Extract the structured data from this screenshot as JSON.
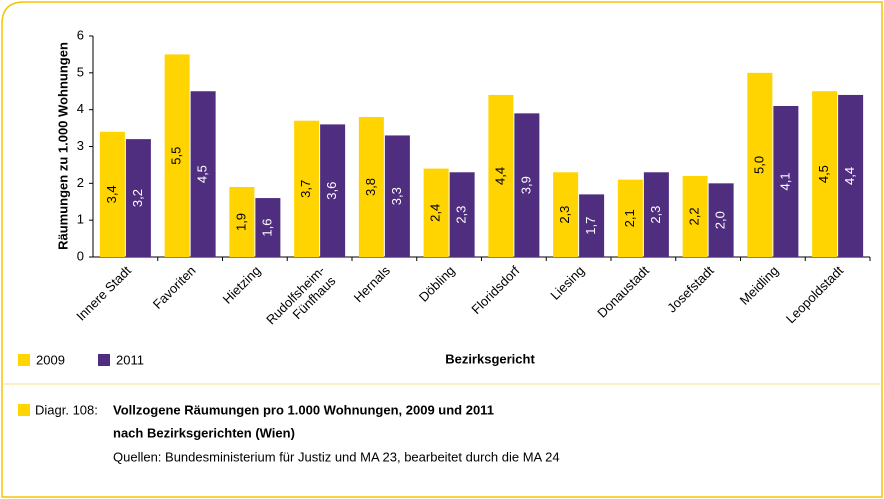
{
  "chart_data": {
    "type": "bar",
    "y_label": "Räumungen zu 1.000 Wohnungen",
    "x_label": "Bezirksgericht",
    "categories": [
      "Innere Stadt",
      "Favoriten",
      "Hietzing",
      "Rudolfsheim-\nFünfhaus",
      "Hernals",
      "Döbling",
      "Floridsdorf",
      "Liesing",
      "Donaustadt",
      "Josefstadt",
      "Meidling",
      "Leopoldstadt"
    ],
    "series": [
      {
        "name": "2009",
        "color": "#ffd400",
        "values": [
          3.4,
          5.5,
          1.9,
          3.7,
          3.8,
          2.4,
          4.4,
          2.3,
          2.1,
          2.2,
          5.0,
          4.5
        ],
        "value_labels": [
          "3,4",
          "5,5",
          "1,9",
          "3,7",
          "3,8",
          "2,4",
          "4,4",
          "2,3",
          "2,1",
          "2,2",
          "5,0",
          "4,5"
        ]
      },
      {
        "name": "2011",
        "color": "#4f2d7f",
        "values": [
          3.2,
          4.5,
          1.6,
          3.6,
          3.3,
          2.3,
          3.9,
          1.7,
          2.3,
          2.0,
          4.1,
          4.4
        ],
        "value_labels": [
          "3,2",
          "4,5",
          "1,6",
          "3,6",
          "3,3",
          "2,3",
          "3,9",
          "1,7",
          "2,3",
          "2,0",
          "4,1",
          "4,4"
        ]
      }
    ],
    "ylim": [
      0,
      6
    ],
    "yticks": [
      0,
      1,
      2,
      3,
      4,
      5,
      6
    ],
    "grid": false,
    "legend": "bottom-left"
  },
  "caption": {
    "number": "Diagr. 108:",
    "title_lines": [
      "Vollzogene Räumungen pro 1.000 Wohnungen, 2009 und 2011",
      "nach Bezirksgerichten (Wien)"
    ],
    "source": "Quellen: Bundesministerium für Justiz und MA 23, bearbeitet durch die MA 24"
  }
}
